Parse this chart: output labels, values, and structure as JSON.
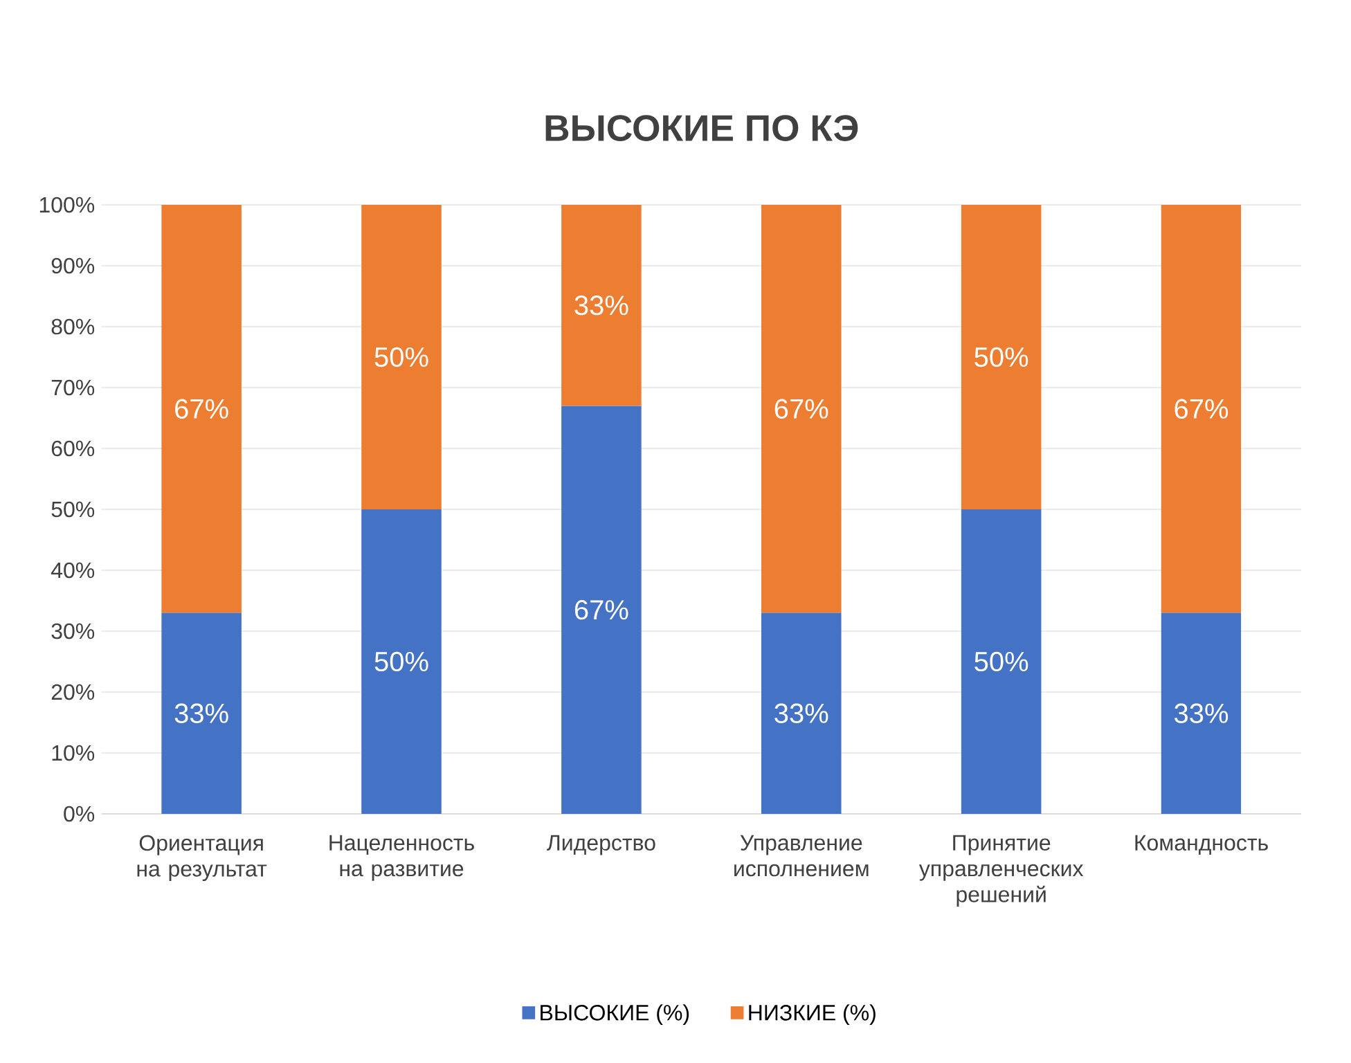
{
  "chart_data": {
    "type": "bar",
    "title": "ВЫСОКИЕ ПО КЭ",
    "stacked": true,
    "categories": [
      "Ориентация на результат",
      "Нацеленность на развитие",
      "Лидерство",
      "Управление исполнением",
      "Принятие управленческих решений",
      "Командность"
    ],
    "series": [
      {
        "name": "ВЫСОКИЕ (%)",
        "color": "#4472c4",
        "values": [
          33,
          50,
          67,
          33,
          50,
          33
        ],
        "value_labels": [
          "33%",
          "50%",
          "67%",
          "33%",
          "50%",
          "33%"
        ]
      },
      {
        "name": "НИЗКИЕ (%)",
        "color": "#ed7d31",
        "values": [
          67,
          50,
          33,
          67,
          50,
          67
        ],
        "value_labels": [
          "67%",
          "50%",
          "33%",
          "67%",
          "50%",
          "67%"
        ]
      }
    ],
    "ylim": [
      0,
      100
    ],
    "yticks": [
      {
        "value": 0,
        "label": "0%"
      },
      {
        "value": 10,
        "label": "10%"
      },
      {
        "value": 20,
        "label": "20%"
      },
      {
        "value": 30,
        "label": "30%"
      },
      {
        "value": 40,
        "label": "40%"
      },
      {
        "value": 50,
        "label": "50%"
      },
      {
        "value": 60,
        "label": "60%"
      },
      {
        "value": 70,
        "label": "70%"
      },
      {
        "value": 80,
        "label": "80%"
      },
      {
        "value": 90,
        "label": "90%"
      },
      {
        "value": 100,
        "label": "100%"
      }
    ],
    "grid": "y",
    "legend": "bottom"
  }
}
